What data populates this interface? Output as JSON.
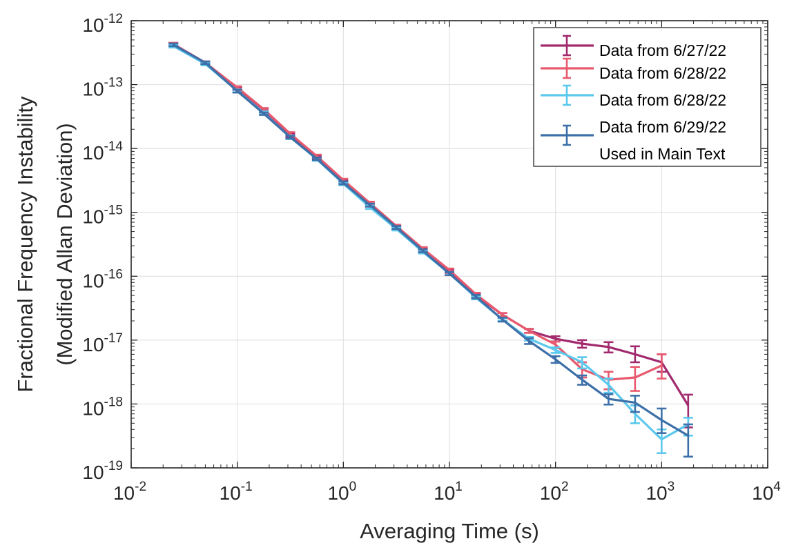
{
  "chart_data": {
    "type": "line",
    "xlabel": "Averaging Time (s)",
    "ylabel_lines": [
      "Fractional Frequency Instability",
      "(Modified Allan Deviation)"
    ],
    "x_scale": "log",
    "y_scale": "log",
    "xlim": [
      0.01,
      10000
    ],
    "ylim": [
      1e-19,
      1e-12
    ],
    "grid": true,
    "legend_position": "top-right",
    "x_ticks": [
      {
        "base": "10",
        "exp": "-2"
      },
      {
        "base": "10",
        "exp": "-1"
      },
      {
        "base": "10",
        "exp": "0"
      },
      {
        "base": "10",
        "exp": "1"
      },
      {
        "base": "10",
        "exp": "2"
      },
      {
        "base": "10",
        "exp": "3"
      },
      {
        "base": "10",
        "exp": "4"
      }
    ],
    "y_ticks": [
      {
        "base": "10",
        "exp": "-12"
      },
      {
        "base": "10",
        "exp": "-13"
      },
      {
        "base": "10",
        "exp": "-14"
      },
      {
        "base": "10",
        "exp": "-15"
      },
      {
        "base": "10",
        "exp": "-16"
      },
      {
        "base": "10",
        "exp": "-17"
      },
      {
        "base": "10",
        "exp": "-18"
      },
      {
        "base": "10",
        "exp": "-19"
      }
    ],
    "series": [
      {
        "name_lines": [
          "Data from 6/27/22"
        ],
        "color": "#A12A6E",
        "x": [
          0.025,
          0.05,
          0.1,
          0.178,
          0.316,
          0.562,
          1,
          1.78,
          3.16,
          5.62,
          10,
          17.8,
          31.6,
          56.2,
          100,
          178,
          316,
          562,
          1000,
          1780
        ],
        "y": [
          4.3e-13,
          2.2e-13,
          8.7e-14,
          4e-14,
          1.6e-14,
          7.3e-15,
          3e-15,
          1.3e-15,
          5.8e-16,
          2.6e-16,
          1.2e-16,
          5e-17,
          2.5e-17,
          1.4e-17,
          1.05e-17,
          8.8e-18,
          7.8e-18,
          6e-18,
          4.5e-18,
          9.5e-19
        ],
        "y_err_low": [
          4.1e-13,
          2.1e-13,
          8.3e-14,
          3.8e-14,
          1.5e-14,
          6.9e-15,
          2.85e-15,
          1.23e-15,
          5.5e-16,
          2.45e-16,
          1.13e-16,
          4.7e-17,
          2.35e-17,
          1.3e-17,
          9.5e-18,
          7.6e-18,
          6.4e-18,
          4.5e-18,
          3.2e-18,
          4.3e-19
        ],
        "y_err_high": [
          4.5e-13,
          2.3e-13,
          9.1e-14,
          4.2e-14,
          1.7e-14,
          7.7e-15,
          3.15e-15,
          1.37e-15,
          6.1e-16,
          2.75e-16,
          1.27e-16,
          5.3e-17,
          2.65e-17,
          1.5e-17,
          1.15e-17,
          1e-17,
          9.3e-18,
          8e-18,
          6e-18,
          1.4e-18
        ]
      },
      {
        "name_lines": [
          "Data from 6/28/22"
        ],
        "color": "#E8596E",
        "x": [
          0.025,
          0.05,
          0.1,
          0.178,
          0.316,
          0.562,
          1,
          1.78,
          3.16,
          5.62,
          10,
          17.8,
          31.6,
          56.2,
          100,
          178,
          316,
          562,
          1000
        ],
        "y": [
          4.3e-13,
          2.2e-13,
          9e-14,
          4.1e-14,
          1.7e-14,
          7.6e-15,
          3.2e-15,
          1.4e-15,
          6.1e-16,
          2.7e-16,
          1.25e-16,
          5.2e-17,
          2.5e-17,
          1.4e-17,
          8.5e-18,
          3.5e-18,
          2.4e-18,
          2.6e-18,
          4e-18
        ],
        "y_err_low": [
          4.1e-13,
          2.1e-13,
          8.6e-14,
          3.9e-14,
          1.6e-14,
          7.2e-15,
          3.05e-15,
          1.33e-15,
          5.8e-16,
          2.55e-16,
          1.18e-16,
          4.9e-17,
          2.35e-17,
          1.3e-17,
          7.5e-18,
          2.6e-18,
          1.7e-18,
          1.6e-18,
          2.5e-18
        ],
        "y_err_high": [
          4.5e-13,
          2.3e-13,
          9.4e-14,
          4.3e-14,
          1.8e-14,
          8e-15,
          3.35e-15,
          1.47e-15,
          6.4e-16,
          2.85e-16,
          1.32e-16,
          5.5e-17,
          2.65e-17,
          1.5e-17,
          9.5e-18,
          4.5e-18,
          3.2e-18,
          3.8e-18,
          6e-18
        ]
      },
      {
        "name_lines": [
          "Data from 6/28/22"
        ],
        "color": "#5BC8EC",
        "x": [
          0.025,
          0.05,
          0.1,
          0.178,
          0.316,
          0.562,
          1,
          1.78,
          3.16,
          5.62,
          10,
          17.8,
          31.6,
          56.2,
          100,
          178,
          316,
          562,
          1000,
          1780
        ],
        "y": [
          4e-13,
          2.1e-13,
          8e-14,
          3.6e-14,
          1.5e-14,
          6.8e-15,
          2.8e-15,
          1.2e-15,
          5.5e-16,
          2.4e-16,
          1.1e-16,
          4.6e-17,
          2.1e-17,
          1.05e-17,
          7e-18,
          4.5e-18,
          2e-18,
          7e-19,
          2.8e-19,
          4.8e-19
        ],
        "y_err_low": [
          3.8e-13,
          2e-13,
          7.6e-14,
          3.4e-14,
          1.4e-14,
          6.4e-15,
          2.65e-15,
          1.13e-15,
          5.2e-16,
          2.27e-16,
          1.04e-16,
          4.35e-17,
          2e-17,
          9.8e-18,
          6.3e-18,
          3.6e-18,
          1.5e-18,
          5e-19,
          1.7e-19,
          3.2e-19
        ],
        "y_err_high": [
          4.2e-13,
          2.2e-13,
          8.4e-14,
          3.8e-14,
          1.6e-14,
          7.2e-15,
          2.95e-15,
          1.27e-15,
          5.8e-16,
          2.53e-16,
          1.16e-16,
          4.85e-17,
          2.2e-17,
          1.12e-17,
          7.7e-18,
          5.4e-18,
          2.5e-18,
          9.5e-19,
          4e-19,
          6.1e-19
        ]
      },
      {
        "name_lines": [
          "Data from 6/29/22",
          "Used in Main Text"
        ],
        "color": "#3D6FA8",
        "x": [
          0.025,
          0.05,
          0.1,
          0.178,
          0.316,
          0.562,
          1,
          1.78,
          3.16,
          5.62,
          10,
          17.8,
          31.6,
          56.2,
          100,
          178,
          316,
          562,
          1000,
          1780
        ],
        "y": [
          4.2e-13,
          2.2e-13,
          7.9e-14,
          3.5e-14,
          1.5e-14,
          6.9e-15,
          2.9e-15,
          1.3e-15,
          5.8e-16,
          2.5e-16,
          1.1e-16,
          4.8e-17,
          2.1e-17,
          9.7e-18,
          5e-18,
          2.4e-18,
          1.2e-18,
          1.05e-18,
          5.6e-19,
          3.2e-19
        ],
        "y_err_low": [
          4e-13,
          2.1e-13,
          7.5e-14,
          3.35e-14,
          1.43e-14,
          6.6e-15,
          2.75e-15,
          1.23e-15,
          5.5e-16,
          2.37e-16,
          1.04e-16,
          4.5e-17,
          1.95e-17,
          8.7e-18,
          4.4e-18,
          2e-18,
          9.8e-19,
          7.5e-19,
          3.5e-19,
          1.5e-19
        ],
        "y_err_high": [
          4.4e-13,
          2.3e-13,
          8.3e-14,
          3.65e-14,
          1.57e-14,
          7.2e-15,
          3.05e-15,
          1.37e-15,
          6.1e-16,
          2.63e-16,
          1.16e-16,
          5.1e-17,
          2.25e-17,
          1.07e-17,
          5.6e-18,
          2.8e-18,
          1.42e-18,
          1.35e-18,
          8.5e-19,
          4.8e-19
        ]
      }
    ]
  }
}
